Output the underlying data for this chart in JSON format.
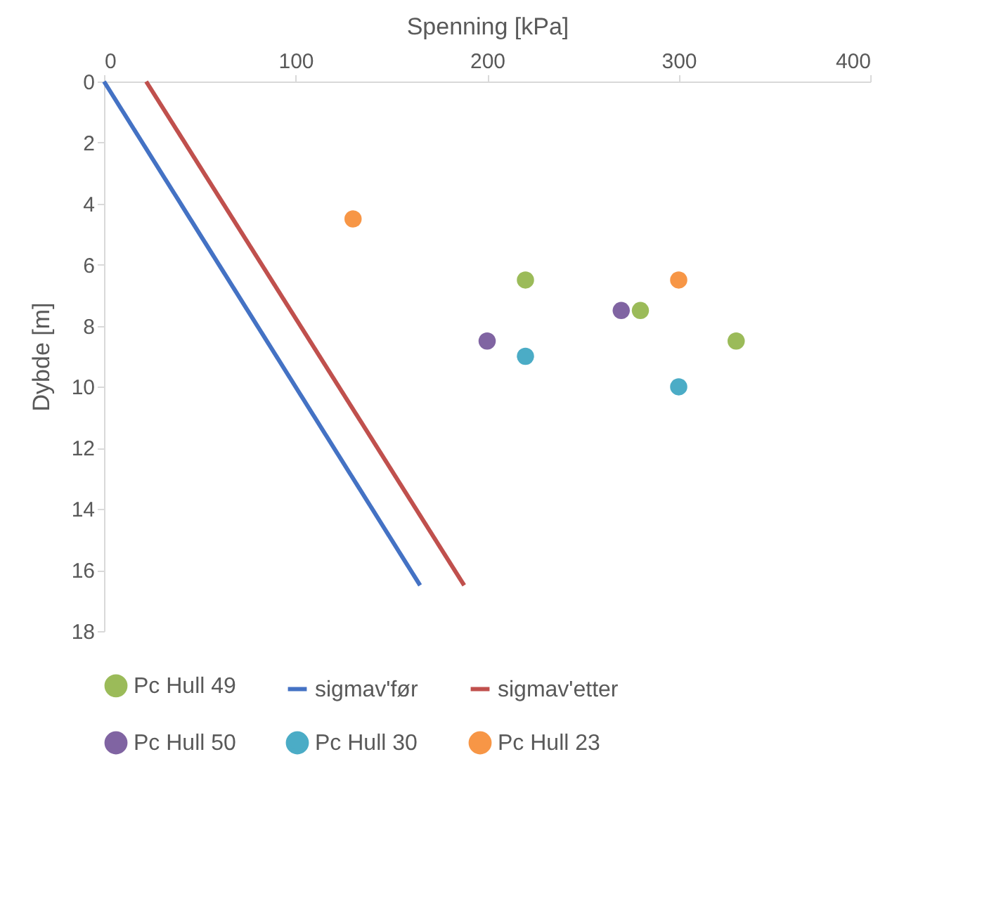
{
  "chart_data": {
    "type": "scatter",
    "xlabel": "Spenning [kPa]",
    "ylabel": "Dybde [m]",
    "xlim": [
      0,
      400
    ],
    "xticks": [
      0,
      100,
      200,
      300,
      400
    ],
    "ylim": [
      18,
      0
    ],
    "yticks": [
      0,
      2,
      4,
      6,
      8,
      10,
      12,
      14,
      16,
      18
    ],
    "grid": false,
    "legend": "bottom",
    "line_style": "solid",
    "series": [
      {
        "name": "Pc Hull 49",
        "marker": "circle",
        "color": "#9bbb59",
        "x": [
          220,
          280,
          330
        ],
        "values": [
          6.5,
          7.5,
          8.5
        ]
      },
      {
        "name": "sigmav'før",
        "type": "line",
        "marker": "none",
        "color": "#4472c4",
        "x": [
          0,
          165
        ],
        "values": [
          0,
          16.5
        ]
      },
      {
        "name": "sigmav'etter",
        "type": "line",
        "marker": "none",
        "color": "#c0504d",
        "x": [
          22,
          188
        ],
        "values": [
          0,
          16.5
        ]
      },
      {
        "name": "Pc Hull 50",
        "marker": "circle",
        "color": "#8064a2",
        "x": [
          270,
          200
        ],
        "values": [
          7.5,
          8.5
        ]
      },
      {
        "name": "Pc Hull 30",
        "marker": "circle",
        "color": "#4bacc6",
        "x": [
          220,
          300
        ],
        "values": [
          9,
          10
        ]
      },
      {
        "name": "Pc Hull 23",
        "marker": "circle",
        "color": "#f79646",
        "x": [
          130,
          300
        ],
        "values": [
          4.5,
          6.5
        ]
      }
    ]
  }
}
